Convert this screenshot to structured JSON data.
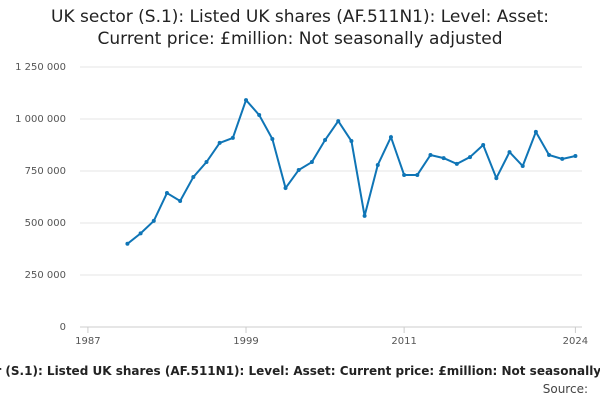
{
  "chart_data": {
    "type": "line",
    "title": "UK sector (S.1): Listed UK shares (AF.511N1): Level: Asset: Current price: £million: Not seasonally adjusted",
    "source_label": "Source:",
    "x": [
      1990,
      1991,
      1992,
      1993,
      1994,
      1995,
      1996,
      1997,
      1998,
      1999,
      2000,
      2001,
      2002,
      2003,
      2004,
      2005,
      2006,
      2007,
      2008,
      2009,
      2010,
      2011,
      2012,
      2013,
      2014,
      2015,
      2016,
      2017,
      2018,
      2019,
      2020,
      2021,
      2022,
      2023,
      2024
    ],
    "series": [
      {
        "color": "#0f75b6",
        "values": [
          400000,
          450000,
          510000,
          644000,
          606000,
          721000,
          793000,
          885000,
          909000,
          1091000,
          1019000,
          904000,
          668000,
          755000,
          793000,
          899000,
          990000,
          894000,
          534000,
          779000,
          913000,
          731000,
          731000,
          827000,
          812000,
          784000,
          817000,
          875000,
          716000,
          841000,
          774000,
          938000,
          827000,
          808000,
          822000
        ]
      }
    ],
    "xlim": [
      1986.4,
      2024.5
    ],
    "xticks": [
      1987,
      1999,
      2011,
      2024
    ],
    "ylim": [
      0,
      1250000
    ],
    "yticks": [
      {
        "value": 0,
        "label": "0"
      },
      {
        "value": 250000,
        "label": "250 000"
      },
      {
        "value": 500000,
        "label": "500 000"
      },
      {
        "value": 750000,
        "label": "750 000"
      },
      {
        "value": 1000000,
        "label": "1 000 000"
      },
      {
        "value": 1250000,
        "label": "1 250 000"
      }
    ],
    "grid": true
  }
}
